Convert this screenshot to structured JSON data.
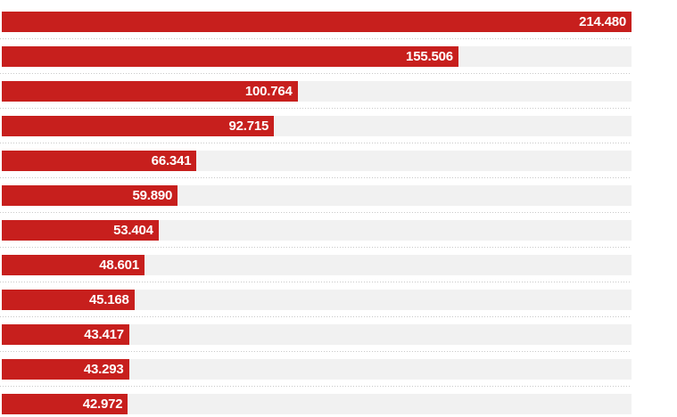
{
  "page": {
    "background_color": "#ffffff"
  },
  "chart_data": {
    "type": "bar",
    "orientation": "horizontal",
    "title": "",
    "xlabel": "",
    "ylabel": "",
    "legend": "none",
    "axis_tick_labels": "none",
    "category_labels_visible": false,
    "grid": "dotted-row-separators",
    "xlim": [
      0,
      214480
    ],
    "max_value": 214480,
    "bars": [
      {
        "label": "214.480",
        "value": 214480
      },
      {
        "label": "155.506",
        "value": 155506
      },
      {
        "label": "100.764",
        "value": 100764
      },
      {
        "label": "92.715",
        "value": 92715
      },
      {
        "label": "66.341",
        "value": 66341
      },
      {
        "label": "59.890",
        "value": 59890
      },
      {
        "label": "53.404",
        "value": 53404
      },
      {
        "label": "48.601",
        "value": 48601
      },
      {
        "label": "45.168",
        "value": 45168
      },
      {
        "label": "43.417",
        "value": 43417
      },
      {
        "label": "43.293",
        "value": 43293
      },
      {
        "label": "42.972",
        "value": 42972
      }
    ],
    "colors": {
      "bar": "#c71f1d",
      "track": "#f1f1f1",
      "separator": "#c9c9c9",
      "value_label": "#ffffff"
    }
  }
}
